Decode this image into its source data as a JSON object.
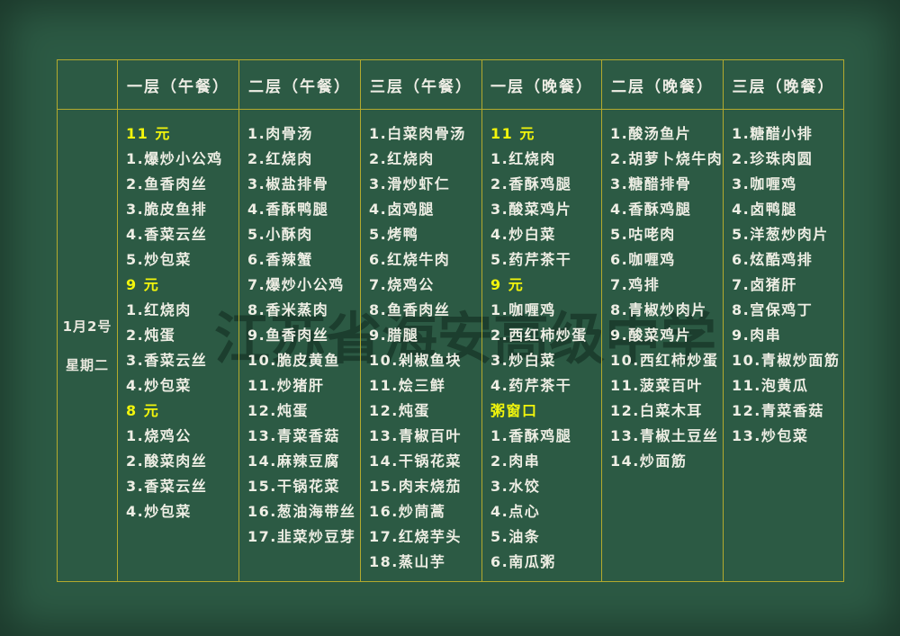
{
  "watermark": {
    "text": "江苏省海安高级中学"
  },
  "date": {
    "line1": "1月2号",
    "line2": "星期二"
  },
  "colors": {
    "background": "#2c5a44",
    "grid_line": "#b3aa2e",
    "item_text": "#eeeee4",
    "price_text": "#f2f50c"
  },
  "columns": [
    {
      "header": "一层（午餐）",
      "items": [
        {
          "text": "11 元",
          "hl": true
        },
        {
          "text": "1.爆炒小公鸡"
        },
        {
          "text": "2.鱼香肉丝"
        },
        {
          "text": "3.脆皮鱼排"
        },
        {
          "text": "4.香菜云丝"
        },
        {
          "text": "5.炒包菜"
        },
        {
          "text": "9 元",
          "hl": true
        },
        {
          "text": "1.红烧肉"
        },
        {
          "text": "2.炖蛋"
        },
        {
          "text": "3.香菜云丝"
        },
        {
          "text": "4.炒包菜"
        },
        {
          "text": "8 元",
          "hl": true
        },
        {
          "text": "1.烧鸡公"
        },
        {
          "text": "2.酸菜肉丝"
        },
        {
          "text": "3.香菜云丝"
        },
        {
          "text": "4.炒包菜"
        }
      ]
    },
    {
      "header": "二层（午餐）",
      "items": [
        {
          "text": "1.肉骨汤"
        },
        {
          "text": "2.红烧肉"
        },
        {
          "text": "3.椒盐排骨"
        },
        {
          "text": "4.香酥鸭腿"
        },
        {
          "text": "5.小酥肉"
        },
        {
          "text": "6.香辣蟹"
        },
        {
          "text": "7.爆炒小公鸡"
        },
        {
          "text": "8.香米蒸肉"
        },
        {
          "text": "9.鱼香肉丝"
        },
        {
          "text": "10.脆皮黄鱼"
        },
        {
          "text": "11.炒猪肝"
        },
        {
          "text": "12.炖蛋"
        },
        {
          "text": "13.青菜香菇"
        },
        {
          "text": "14.麻辣豆腐"
        },
        {
          "text": "15.干锅花菜"
        },
        {
          "text": "16.葱油海带丝"
        },
        {
          "text": "17.韭菜炒豆芽"
        }
      ]
    },
    {
      "header": "三层（午餐）",
      "items": [
        {
          "text": "1.白菜肉骨汤"
        },
        {
          "text": "2.红烧肉"
        },
        {
          "text": "3.滑炒虾仁"
        },
        {
          "text": "4.卤鸡腿"
        },
        {
          "text": "5.烤鸭"
        },
        {
          "text": "6.红烧牛肉"
        },
        {
          "text": "7.烧鸡公"
        },
        {
          "text": "8.鱼香肉丝"
        },
        {
          "text": "9.腊腿"
        },
        {
          "text": "10.剁椒鱼块"
        },
        {
          "text": "11.烩三鲜"
        },
        {
          "text": "12.炖蛋"
        },
        {
          "text": "13.青椒百叶"
        },
        {
          "text": "14.干锅花菜"
        },
        {
          "text": "15.肉末烧茄"
        },
        {
          "text": "16.炒茼蒿"
        },
        {
          "text": "17.红烧芋头"
        },
        {
          "text": "18.蒸山芋"
        }
      ]
    },
    {
      "header": "一层（晚餐）",
      "items": [
        {
          "text": "11 元",
          "hl": true
        },
        {
          "text": "1.红烧肉"
        },
        {
          "text": "2.香酥鸡腿"
        },
        {
          "text": "3.酸菜鸡片"
        },
        {
          "text": "4.炒白菜"
        },
        {
          "text": "5.药芹茶干"
        },
        {
          "text": "9 元",
          "hl": true
        },
        {
          "text": "1.咖喱鸡"
        },
        {
          "text": "2.西红柿炒蛋"
        },
        {
          "text": "3.炒白菜"
        },
        {
          "text": "4.药芹茶干"
        },
        {
          "text": "粥窗口",
          "hl": true
        },
        {
          "text": "1.香酥鸡腿"
        },
        {
          "text": "2.肉串"
        },
        {
          "text": "3.水饺"
        },
        {
          "text": "4.点心"
        },
        {
          "text": "5.油条"
        },
        {
          "text": "6.南瓜粥"
        }
      ]
    },
    {
      "header": "二层（晚餐）",
      "items": [
        {
          "text": "1.酸汤鱼片"
        },
        {
          "text": "2.胡萝卜烧牛肉"
        },
        {
          "text": "3.糖醋排骨"
        },
        {
          "text": "4.香酥鸡腿"
        },
        {
          "text": "5.咕咾肉"
        },
        {
          "text": "6.咖喱鸡"
        },
        {
          "text": "7.鸡排"
        },
        {
          "text": "8.青椒炒肉片"
        },
        {
          "text": "9.酸菜鸡片"
        },
        {
          "text": "10.西红柿炒蛋"
        },
        {
          "text": "11.菠菜百叶"
        },
        {
          "text": "12.白菜木耳"
        },
        {
          "text": "13.青椒土豆丝"
        },
        {
          "text": "14.炒面筋"
        }
      ]
    },
    {
      "header": "三层（晚餐）",
      "items": [
        {
          "text": "1.糖醋小排"
        },
        {
          "text": "2.珍珠肉圆"
        },
        {
          "text": "3.咖喱鸡"
        },
        {
          "text": "4.卤鸭腿"
        },
        {
          "text": "5.洋葱炒肉片"
        },
        {
          "text": "6.炫酷鸡排"
        },
        {
          "text": "7.卤猪肝"
        },
        {
          "text": "8.宫保鸡丁"
        },
        {
          "text": "9.肉串"
        },
        {
          "text": "10.青椒炒面筋"
        },
        {
          "text": "11.泡黄瓜"
        },
        {
          "text": "12.青菜香菇"
        },
        {
          "text": "13.炒包菜"
        }
      ]
    }
  ]
}
